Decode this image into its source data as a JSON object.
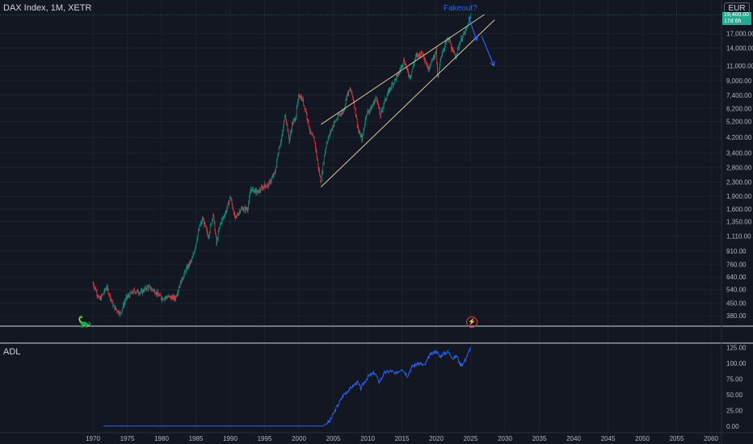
{
  "header": {
    "symbol_line": "DAX Index, 1M, XETR",
    "currency": "EUR",
    "price_tag_line1": "19,400.00",
    "price_tag_line2": "17d 6h"
  },
  "indicator": {
    "name": "ADL"
  },
  "annotation": {
    "text": "Fakeout?"
  },
  "colors": {
    "background": "#131722",
    "up": "#089981",
    "down": "#f23645",
    "wedge": "#d8c99b",
    "arrow": "#2962ff",
    "adl_line": "#2962ff",
    "grid": "#1e222d"
  },
  "icons": {
    "logo": "tradingview-dino-icon",
    "event": "lightning-event-icon"
  },
  "chart_data": [
    {
      "type": "candlestick",
      "title": "DAX Index, 1M, XETR",
      "yscale": "log",
      "ylim": [
        330,
        22000
      ],
      "xlim": [
        1968,
        2061
      ],
      "y_ticks": [
        "380.00",
        "450.00",
        "540.00",
        "640.00",
        "760.00",
        "910.00",
        "1,110.00",
        "1,350.00",
        "1,600.00",
        "1,900.00",
        "2,300.00",
        "2,800.00",
        "3,400.00",
        "4,200.00",
        "5,200.00",
        "6,200.00",
        "7,400.00",
        "9,000.00",
        "11,000.00",
        "14,000.00",
        "17,000.00"
      ],
      "y_tick_values": [
        380,
        450,
        540,
        640,
        760,
        910,
        1110,
        1350,
        1600,
        1900,
        2300,
        2800,
        3400,
        4200,
        5200,
        6200,
        7400,
        9000,
        11000,
        14000,
        17000
      ],
      "series": [
        {
          "x": [
            1970.0,
            1971.0,
            1972.0,
            1973.0,
            1974.0,
            1974.8,
            1976.0,
            1977.0,
            1978.0,
            1979.0,
            1980.0,
            1981.0,
            1982.0,
            1982.5,
            1983.5,
            1984.5,
            1985.5,
            1986.0,
            1986.8,
            1987.5,
            1988.0,
            1988.5,
            1989.5,
            1990.0,
            1990.7,
            1991.5,
            1992.5,
            1993.0,
            1994.0,
            1995.0,
            1995.5,
            1996.5,
            1997.0,
            1997.6,
            1998.0,
            1998.6,
            1999.0,
            1999.5,
            2000.0,
            2000.5,
            2001.0,
            2001.7,
            2002.3,
            2002.7,
            2003.2,
            2003.6,
            2004.0,
            2005.0,
            2006.0,
            2006.5,
            2007.0,
            2007.5,
            2008.0,
            2008.7,
            2009.2,
            2009.8,
            2010.5,
            2011.3,
            2011.8,
            2012.5,
            2013.5,
            2014.5,
            2015.3,
            2015.8,
            2016.2,
            2017.0,
            2018.0,
            2018.8,
            2019.5,
            2020.0,
            2020.2,
            2020.7,
            2021.5,
            2021.9,
            2022.3,
            2022.8,
            2023.5,
            2024.0,
            2024.5,
            2025.0
          ],
          "y": [
            590,
            470,
            560,
            430,
            390,
            480,
            530,
            520,
            560,
            530,
            480,
            490,
            480,
            560,
            700,
            820,
            1250,
            1400,
            1100,
            1500,
            1000,
            1300,
            1600,
            1900,
            1400,
            1600,
            1600,
            2100,
            2000,
            2200,
            2200,
            2600,
            3500,
            4400,
            5800,
            4000,
            5000,
            5500,
            7500,
            7000,
            6000,
            4400,
            4000,
            3000,
            2300,
            3100,
            3900,
            5000,
            5800,
            6000,
            7500,
            8000,
            6800,
            4500,
            4100,
            5800,
            6200,
            7300,
            5600,
            6900,
            8500,
            9900,
            12000,
            10100,
            9500,
            12500,
            13200,
            10600,
            12200,
            13500,
            9000,
            12700,
            15400,
            15800,
            13500,
            12500,
            15500,
            16800,
            18400,
            21500
          ]
        }
      ],
      "annotations": [
        "Fakeout?"
      ],
      "wedge_lines": [
        {
          "x": [
            2003.2,
            2027.0
          ],
          "y": [
            5000,
            22000
          ]
        },
        {
          "x": [
            2003.2,
            2028.5
          ],
          "y": [
            2150,
            20500
          ]
        }
      ],
      "arrows": [
        {
          "x": [
            2024.7,
            2025.9
          ],
          "y": [
            21300,
            15500
          ]
        },
        {
          "x": [
            2026.6,
            2028.4
          ],
          "y": [
            16500,
            11000
          ]
        }
      ]
    },
    {
      "type": "line",
      "title": "ADL",
      "ylim": [
        -8,
        132
      ],
      "xlim": [
        1968,
        2061
      ],
      "y_ticks": [
        "0.00",
        "25.00",
        "50.00",
        "75.00",
        "100.00",
        "125.00"
      ],
      "y_tick_values": [
        0,
        25,
        50,
        75,
        100,
        125
      ],
      "x_ticks": [
        "1970",
        "1975",
        "1980",
        "1985",
        "1990",
        "1995",
        "2000",
        "2005",
        "2010",
        "2015",
        "2020",
        "2025",
        "2030",
        "2035",
        "2040",
        "2045",
        "2050",
        "2055",
        "2060"
      ],
      "x_tick_values": [
        1970,
        1975,
        1980,
        1985,
        1990,
        1995,
        2000,
        2005,
        2010,
        2015,
        2020,
        2025,
        2030,
        2035,
        2040,
        2045,
        2050,
        2055,
        2060
      ],
      "series": [
        {
          "x": [
            1971.5,
            2003.5,
            2004.5,
            2005.5,
            2006.5,
            2007.5,
            2008.5,
            2009.0,
            2010.0,
            2011.0,
            2011.7,
            2012.5,
            2013.5,
            2014.0,
            2015.0,
            2015.8,
            2016.5,
            2017.5,
            2018.3,
            2019.0,
            2020.0,
            2020.5,
            2021.0,
            2021.7,
            2022.5,
            2023.0,
            2023.5,
            2024.0,
            2024.5,
            2025.0
          ],
          "y": [
            0,
            0,
            8,
            30,
            50,
            60,
            70,
            60,
            78,
            85,
            70,
            85,
            88,
            82,
            92,
            80,
            95,
            100,
            96,
            112,
            120,
            110,
            115,
            118,
            108,
            112,
            98,
            100,
            112,
            125
          ]
        }
      ]
    }
  ]
}
